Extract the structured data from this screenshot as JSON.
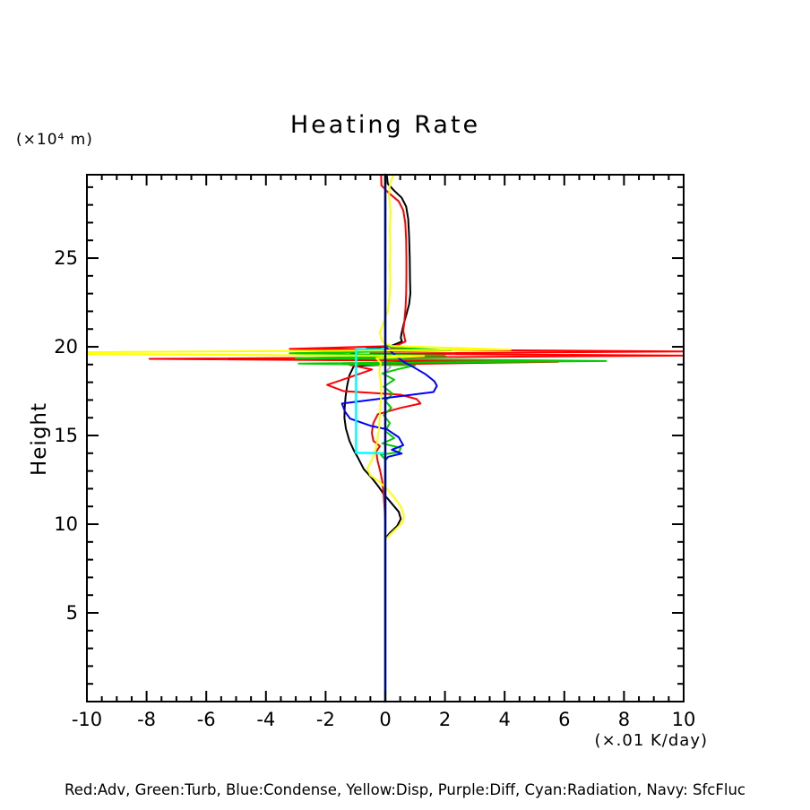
{
  "page": {
    "title": "Heating Rate",
    "y_axis_unit": "(×10⁴ m)",
    "y_axis_title": "Height",
    "x_axis_unit": "(×.01 K/day)",
    "legend": "Red:Adv, Green:Turb, Blue:Condense, Yellow:Disp, Purple:Diff, Cyan:Radiation, Navy: SfcFluc"
  },
  "chart_data": {
    "type": "line",
    "title": "Heating Rate",
    "xlabel": "(×.01 K/day)",
    "ylabel": "Height (×10⁴ m)",
    "orientation": "vertical-profile (x = heating rate value, y = height)",
    "grid": false,
    "background": "#ffffff",
    "axis_color": "#000000",
    "xlim": [
      -10,
      10
    ],
    "ylim": [
      0,
      29.7
    ],
    "x_ticks": {
      "major_step": 2,
      "minor_step": 0.5,
      "values": [
        -10,
        -8,
        -6,
        -4,
        -2,
        0,
        2,
        4,
        6,
        8,
        10
      ],
      "labels": [
        "-10",
        "-8",
        "-6",
        "-4",
        "-2",
        "0",
        "2",
        "4",
        "6",
        "8",
        "10"
      ]
    },
    "y_ticks": {
      "major_step": 5,
      "minor_step": 1,
      "values": [
        5,
        10,
        15,
        20,
        25
      ],
      "labels": [
        "5",
        "10",
        "15",
        "20",
        "25"
      ]
    },
    "legend_text": "Red:Adv, Green:Turb, Blue:Condense, Yellow:Disp, Purple:Diff, Cyan:Radiation, Navy: SfcFluc",
    "series": [
      {
        "name": "purple",
        "label": "Diff",
        "color": "#CC99CC",
        "width": 2,
        "points": [
          [
            0,
            29.7
          ],
          [
            0,
            19.45
          ],
          [
            0.16,
            19.3
          ],
          [
            0.08,
            19.1
          ],
          [
            0.17,
            18.85
          ],
          [
            0.05,
            18.65
          ],
          [
            0,
            18.55
          ],
          [
            0,
            0
          ]
        ]
      },
      {
        "name": "black",
        "label": "",
        "color": "#000000",
        "width": 2,
        "points": [
          [
            0.05,
            29.7
          ],
          [
            0.08,
            29.2
          ],
          [
            0.3,
            28.8
          ],
          [
            0.55,
            28.4
          ],
          [
            0.7,
            27.9
          ],
          [
            0.77,
            27.2
          ],
          [
            0.8,
            26.2
          ],
          [
            0.82,
            25.0
          ],
          [
            0.83,
            23.8
          ],
          [
            0.84,
            23.0
          ],
          [
            0.8,
            22.4
          ],
          [
            0.72,
            21.9
          ],
          [
            0.62,
            21.3
          ],
          [
            0.55,
            20.8
          ],
          [
            0.52,
            20.5
          ],
          [
            0.56,
            20.3
          ],
          [
            0.2,
            20.05
          ],
          [
            -0.6,
            19.9
          ],
          [
            -1.15,
            19.6
          ],
          [
            0.5,
            19.45
          ],
          [
            -1.1,
            19.28
          ],
          [
            1.9,
            19.12
          ],
          [
            -1.05,
            18.92
          ],
          [
            -1.2,
            18.4
          ],
          [
            -1.28,
            17.8
          ],
          [
            -1.33,
            17.2
          ],
          [
            -1.36,
            16.6
          ],
          [
            -1.37,
            16.0
          ],
          [
            -1.32,
            15.4
          ],
          [
            -1.2,
            14.7
          ],
          [
            -1.05,
            14.15
          ],
          [
            -0.9,
            13.7
          ],
          [
            -0.72,
            13.1
          ],
          [
            -0.45,
            12.6
          ],
          [
            -0.22,
            12.1
          ],
          [
            -0.05,
            11.7
          ],
          [
            0.2,
            11.2
          ],
          [
            0.45,
            10.7
          ],
          [
            0.52,
            10.3
          ],
          [
            0.4,
            9.9
          ],
          [
            0.15,
            9.5
          ],
          [
            0,
            9.2
          ]
        ]
      },
      {
        "name": "red",
        "label": "Adv",
        "color": "#FF0000",
        "width": 2,
        "points": [
          [
            -0.14,
            29.7
          ],
          [
            -0.13,
            29.1
          ],
          [
            0.1,
            28.7
          ],
          [
            0.45,
            28.2
          ],
          [
            0.6,
            27.7
          ],
          [
            0.67,
            27.0
          ],
          [
            0.7,
            26.0
          ],
          [
            0.71,
            25.0
          ],
          [
            0.71,
            24.0
          ],
          [
            0.7,
            23.0
          ],
          [
            0.68,
            22.2
          ],
          [
            0.64,
            21.4
          ],
          [
            0.6,
            20.9
          ],
          [
            0.65,
            20.5
          ],
          [
            0.68,
            20.3
          ],
          [
            0.35,
            20.05
          ],
          [
            -3.2,
            19.88
          ],
          [
            10,
            19.74
          ],
          [
            -0.5,
            19.62
          ],
          [
            10,
            19.5
          ],
          [
            -7.9,
            19.32
          ],
          [
            5.8,
            19.16
          ],
          [
            -1.2,
            18.98
          ],
          [
            -0.45,
            18.72
          ],
          [
            -1.25,
            18.25
          ],
          [
            -1.95,
            17.85
          ],
          [
            -1.4,
            17.5
          ],
          [
            0.5,
            17.3
          ],
          [
            1.05,
            17.05
          ],
          [
            1.18,
            16.8
          ],
          [
            0.5,
            16.55
          ],
          [
            -0.25,
            16.2
          ],
          [
            -0.4,
            15.7
          ],
          [
            -0.45,
            15.15
          ],
          [
            -0.4,
            14.7
          ],
          [
            -0.18,
            14.4
          ],
          [
            -0.3,
            14.1
          ],
          [
            -0.26,
            13.6
          ],
          [
            -0.17,
            13.0
          ],
          [
            -0.1,
            12.4
          ],
          [
            -0.05,
            11.6
          ],
          [
            -0.02,
            10.8
          ],
          [
            0,
            10.1
          ],
          [
            0,
            0
          ]
        ]
      },
      {
        "name": "green",
        "label": "Turb",
        "color": "#00CC00",
        "width": 2,
        "points": [
          [
            0,
            29.7
          ],
          [
            0,
            20.15
          ],
          [
            0.2,
            19.95
          ],
          [
            2.2,
            19.8
          ],
          [
            -3.2,
            19.64
          ],
          [
            2.0,
            19.5
          ],
          [
            -3.0,
            19.36
          ],
          [
            7.4,
            19.2
          ],
          [
            -2.9,
            19.06
          ],
          [
            1.0,
            18.95
          ],
          [
            0.45,
            18.75
          ],
          [
            -0.1,
            18.5
          ],
          [
            0.3,
            18.15
          ],
          [
            -0.05,
            17.75
          ],
          [
            0.25,
            17.35
          ],
          [
            0,
            16.95
          ],
          [
            0.2,
            16.55
          ],
          [
            -0.05,
            16.15
          ],
          [
            0.15,
            15.7
          ],
          [
            0,
            15.25
          ],
          [
            0.3,
            14.85
          ],
          [
            -0.1,
            14.55
          ],
          [
            0.52,
            14.3
          ],
          [
            0.45,
            14.05
          ],
          [
            -0.15,
            13.92
          ],
          [
            0,
            13.65
          ],
          [
            0,
            0
          ]
        ]
      },
      {
        "name": "blue",
        "label": "Condense",
        "color": "#0000FF",
        "width": 2,
        "points": [
          [
            0,
            29.7
          ],
          [
            0,
            20.0
          ],
          [
            0.18,
            19.75
          ],
          [
            0.38,
            19.45
          ],
          [
            0.62,
            19.15
          ],
          [
            0.95,
            18.85
          ],
          [
            1.35,
            18.45
          ],
          [
            1.65,
            18.05
          ],
          [
            1.73,
            17.8
          ],
          [
            1.62,
            17.45
          ],
          [
            -1.45,
            16.8
          ],
          [
            -1.35,
            16.35
          ],
          [
            -1.18,
            15.95
          ],
          [
            -0.5,
            15.55
          ],
          [
            0.05,
            15.35
          ],
          [
            0.45,
            14.9
          ],
          [
            0.6,
            14.45
          ],
          [
            0.22,
            14.2
          ],
          [
            0.55,
            13.98
          ],
          [
            0.1,
            13.8
          ],
          [
            0,
            13.6
          ],
          [
            0,
            0
          ]
        ]
      },
      {
        "name": "yellow",
        "label": "Disp",
        "color": "#FFFF00",
        "width": 2,
        "points": [
          [
            0.28,
            29.7
          ],
          [
            0.16,
            29.2
          ],
          [
            0.12,
            28.5
          ],
          [
            0.18,
            27.6
          ],
          [
            0.15,
            26.6
          ],
          [
            0.17,
            25.6
          ],
          [
            0.15,
            24.6
          ],
          [
            0.17,
            23.6
          ],
          [
            0.14,
            22.8
          ],
          [
            0.08,
            22.0
          ],
          [
            -0.07,
            21.3
          ],
          [
            -0.18,
            20.8
          ],
          [
            -0.1,
            20.3
          ],
          [
            0.2,
            20.05
          ],
          [
            4.2,
            19.84
          ],
          [
            -10,
            19.7
          ],
          [
            -10,
            19.6
          ],
          [
            1.3,
            19.48
          ],
          [
            -0.3,
            19.36
          ],
          [
            -0.15,
            19.1
          ],
          [
            -0.2,
            18.6
          ],
          [
            -0.15,
            18.0
          ],
          [
            -0.13,
            17.4
          ],
          [
            -0.16,
            16.8
          ],
          [
            -0.18,
            16.2
          ],
          [
            -0.2,
            15.5
          ],
          [
            -0.26,
            14.8
          ],
          [
            -0.32,
            14.2
          ],
          [
            -0.45,
            13.6
          ],
          [
            -0.6,
            13.15
          ],
          [
            -0.5,
            12.75
          ],
          [
            -0.2,
            12.4
          ],
          [
            0.05,
            12.0
          ],
          [
            0.3,
            11.5
          ],
          [
            0.52,
            11.0
          ],
          [
            0.62,
            10.5
          ],
          [
            0.58,
            10.1
          ],
          [
            0.4,
            9.8
          ],
          [
            0.15,
            9.4
          ],
          [
            0,
            9.1
          ]
        ]
      },
      {
        "name": "cyan",
        "label": "Radiation",
        "color": "#00FFFF",
        "width": 2.5,
        "points": [
          [
            0,
            29.7
          ],
          [
            0,
            19.87
          ],
          [
            -0.98,
            19.85
          ],
          [
            -0.98,
            14.02
          ],
          [
            0,
            14.0
          ],
          [
            0,
            0
          ]
        ]
      },
      {
        "name": "navy",
        "label": "SfcFluc",
        "color": "#000080",
        "width": 2.5,
        "points": [
          [
            0,
            29.7
          ],
          [
            0,
            0
          ]
        ]
      }
    ]
  }
}
